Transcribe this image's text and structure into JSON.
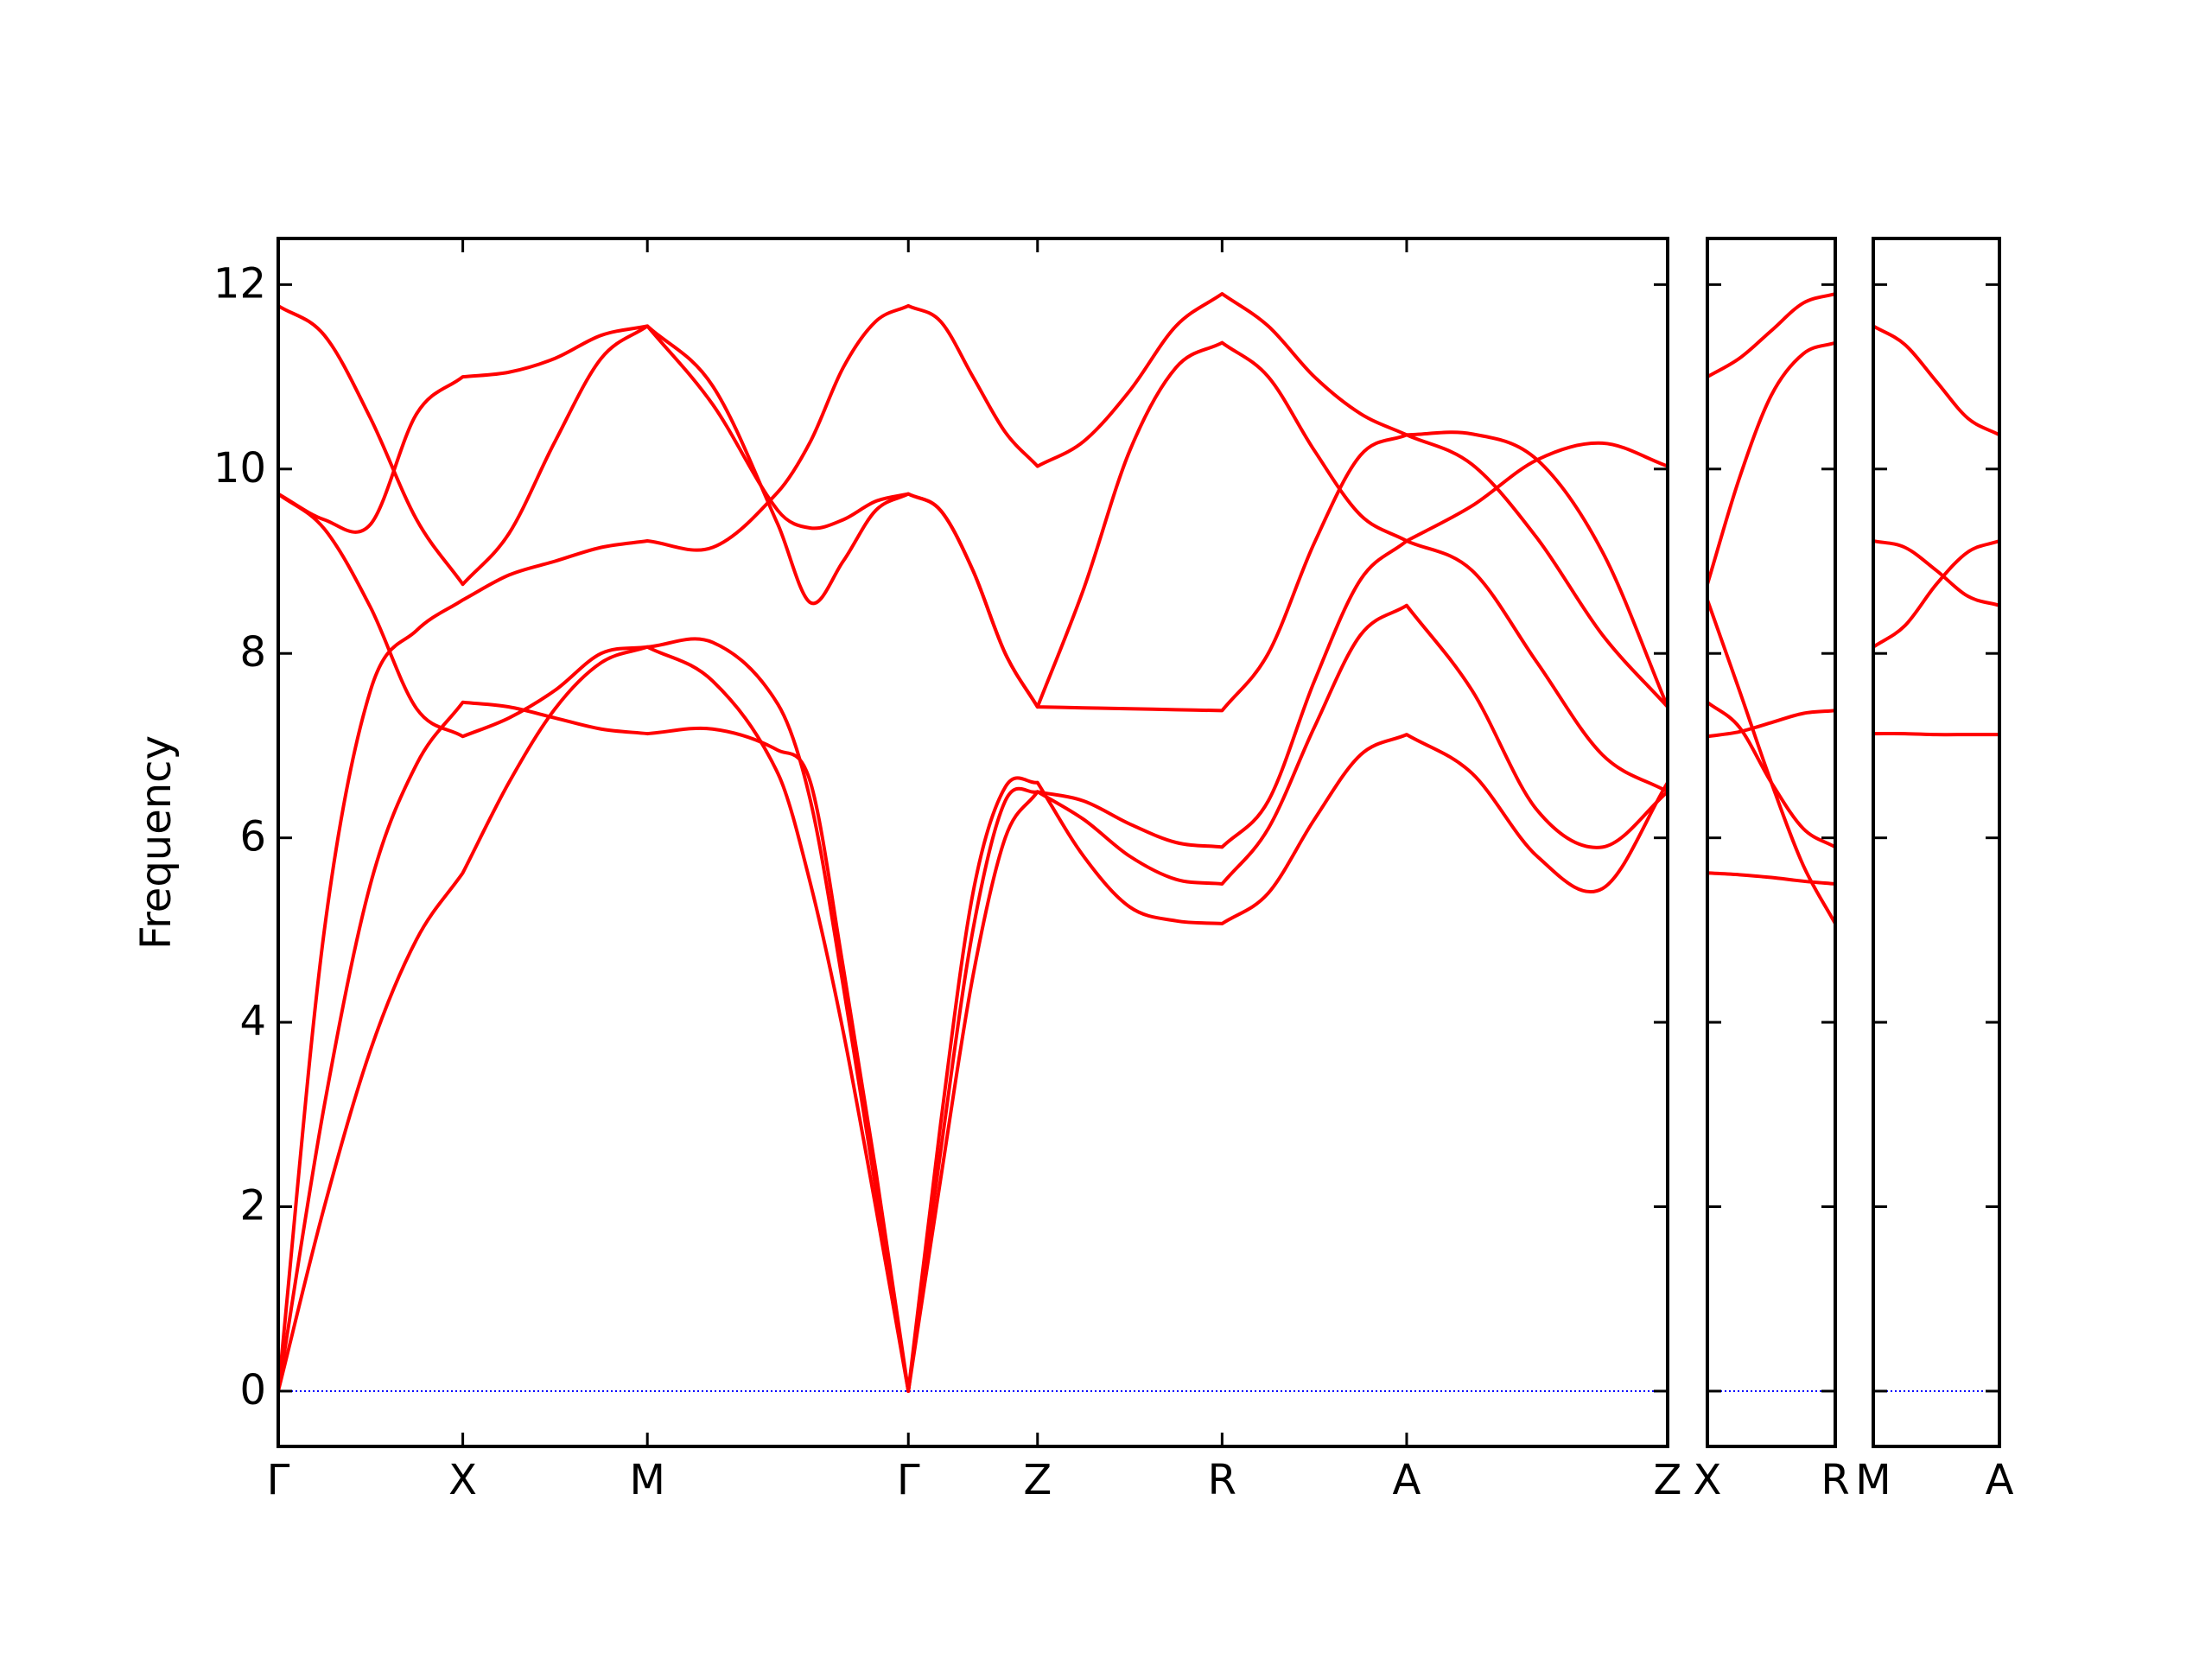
{
  "chart_data": [
    {
      "type": "line",
      "ylabel": "Frequency",
      "xlim": [
        0,
        7.528
      ],
      "ylim": [
        -0.6,
        12.5
      ],
      "xticks": [
        {
          "value": 0,
          "label": "Γ"
        },
        {
          "value": 1,
          "label": "X"
        },
        {
          "value": 2,
          "label": "M"
        },
        {
          "value": 3.414,
          "label": "Γ"
        },
        {
          "value": 4.114,
          "label": "Z"
        },
        {
          "value": 5.114,
          "label": "R"
        },
        {
          "value": 6.114,
          "label": "A"
        },
        {
          "value": 7.528,
          "label": "Z"
        }
      ],
      "yticks": [
        0,
        2,
        4,
        6,
        8,
        10,
        12
      ],
      "reference_line": {
        "value": 0,
        "color": "#0000ff",
        "style": "dotted"
      },
      "x": [
        0,
        0.25,
        0.5,
        0.75,
        1,
        1.25,
        1.5,
        1.75,
        2,
        2.354,
        2.707,
        2.884,
        3.061,
        3.237,
        3.414,
        3.589,
        3.764,
        3.939,
        4.114,
        4.364,
        4.614,
        4.864,
        5.114,
        5.364,
        5.614,
        5.864,
        6.114,
        6.468,
        6.821,
        7.175,
        7.528
      ],
      "series": [
        {
          "color": "#ff0000",
          "values": [
            0,
            2.0,
            3.7,
            4.9,
            5.62,
            6.6,
            7.4,
            7.9,
            8.07,
            7.7,
            6.7,
            5.5,
            3.9,
            2.0,
            0,
            2.3,
            4.5,
            6.0,
            6.5,
            6.4,
            6.15,
            5.95,
            5.9,
            6.4,
            7.7,
            8.8,
            9.22,
            8.9,
            7.9,
            6.9,
            6.5
          ]
        },
        {
          "color": "#ff0000",
          "values": [
            0,
            3.1,
            5.5,
            6.8,
            7.47,
            7.42,
            7.3,
            7.18,
            7.13,
            7.18,
            6.95,
            6.6,
            4.6,
            2.4,
            0,
            2.9,
            5.4,
            6.55,
            6.6,
            5.8,
            5.25,
            5.1,
            5.07,
            5.4,
            6.2,
            6.9,
            7.12,
            6.7,
            5.8,
            5.45,
            6.6
          ]
        },
        {
          "color": "#ff0000",
          "values": [
            0,
            5.0,
            7.6,
            8.25,
            8.58,
            8.85,
            9.0,
            9.15,
            9.22,
            9.15,
            9.75,
            10.3,
            11.1,
            11.6,
            11.77,
            11.6,
            11.0,
            10.4,
            10.03,
            10.3,
            10.85,
            11.55,
            11.9,
            11.55,
            11.0,
            10.6,
            10.37,
            10.05,
            9.25,
            8.2,
            7.42
          ]
        },
        {
          "color": "#ff0000",
          "values": [
            9.73,
            9.35,
            8.5,
            7.4,
            7.1,
            7.3,
            7.6,
            8.0,
            8.07,
            8.12,
            7.45,
            6.4,
            4.4,
            2.2,
            0,
            2.6,
            5.0,
            6.4,
            6.5,
            6.2,
            5.8,
            5.55,
            5.5,
            6.1,
            7.2,
            8.2,
            8.52,
            7.6,
            6.3,
            5.9,
            6.5
          ]
        },
        {
          "color": "#ff0000",
          "values": [
            9.73,
            9.45,
            9.4,
            10.6,
            11.0,
            11.05,
            11.2,
            11.45,
            11.55,
            10.7,
            9.55,
            9.36,
            9.45,
            9.65,
            9.73,
            9.55,
            8.9,
            8.0,
            7.42,
            8.7,
            10.2,
            11.1,
            11.37,
            11.0,
            10.2,
            9.5,
            9.22,
            9.6,
            10.1,
            10.28,
            10.03
          ]
        },
        {
          "color": "#ff0000",
          "values": [
            11.77,
            11.45,
            10.55,
            9.45,
            8.75,
            9.3,
            10.3,
            11.2,
            11.55,
            10.9,
            9.4,
            8.55,
            9.0,
            9.55,
            9.73,
            9.55,
            8.9,
            8.0,
            7.42,
            7.41,
            7.4,
            7.39,
            7.38,
            8.0,
            9.2,
            10.15,
            10.37,
            10.38,
            10.1,
            9.1,
            7.42
          ]
        }
      ]
    },
    {
      "type": "line",
      "xlim": [
        0,
        0.7
      ],
      "ylim": [
        -0.6,
        12.5
      ],
      "xticks": [
        {
          "value": 0,
          "label": "X"
        },
        {
          "value": 0.7,
          "label": "R"
        }
      ],
      "reference_line": {
        "value": 0,
        "color": "#0000ff",
        "style": "dotted"
      },
      "x": [
        0,
        0.175,
        0.35,
        0.525,
        0.7
      ],
      "series": [
        {
          "color": "#ff0000",
          "values": [
            11.0,
            11.2,
            11.5,
            11.8,
            11.9
          ]
        },
        {
          "color": "#ff0000",
          "values": [
            8.75,
            9.9,
            10.8,
            11.25,
            11.37
          ]
        },
        {
          "color": "#ff0000",
          "values": [
            8.58,
            7.6,
            6.6,
            5.7,
            5.07
          ]
        },
        {
          "color": "#ff0000",
          "values": [
            7.47,
            7.2,
            6.6,
            6.1,
            5.9
          ]
        },
        {
          "color": "#ff0000",
          "values": [
            7.1,
            7.15,
            7.25,
            7.35,
            7.38
          ]
        },
        {
          "color": "#ff0000",
          "values": [
            5.62,
            5.6,
            5.57,
            5.53,
            5.5
          ]
        }
      ]
    },
    {
      "type": "line",
      "xlim": [
        0,
        0.7
      ],
      "ylim": [
        -0.6,
        12.5
      ],
      "xticks": [
        {
          "value": 0,
          "label": "M"
        },
        {
          "value": 0.7,
          "label": "A"
        }
      ],
      "reference_line": {
        "value": 0,
        "color": "#0000ff",
        "style": "dotted"
      },
      "x": [
        0,
        0.175,
        0.35,
        0.525,
        0.7
      ],
      "series": [
        {
          "color": "#ff0000",
          "values": [
            11.55,
            11.35,
            10.95,
            10.55,
            10.37
          ]
        },
        {
          "color": "#ff0000",
          "values": [
            9.22,
            9.15,
            8.9,
            8.62,
            8.52
          ]
        },
        {
          "color": "#ff0000",
          "values": [
            8.07,
            8.3,
            8.75,
            9.1,
            9.22
          ]
        },
        {
          "color": "#ff0000",
          "values": [
            7.13,
            7.13,
            7.12,
            7.12,
            7.12
          ]
        }
      ]
    }
  ]
}
